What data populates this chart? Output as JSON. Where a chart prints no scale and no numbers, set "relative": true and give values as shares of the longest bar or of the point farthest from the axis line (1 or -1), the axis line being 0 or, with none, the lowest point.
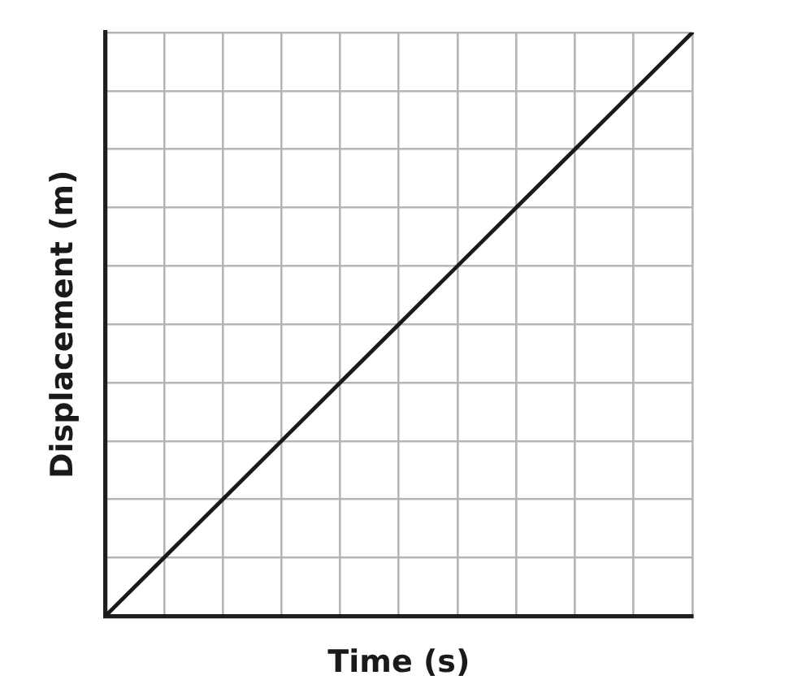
{
  "chart_data": {
    "type": "line",
    "xlabel": "Time (s)",
    "ylabel": "Displacement (m)",
    "categories": [
      null,
      null,
      null,
      null,
      null,
      null,
      null,
      null,
      null,
      null,
      null
    ],
    "series": [
      {
        "color": "#1a1a1a",
        "values": [
          0,
          0.1,
          0.2,
          0.3,
          0.4,
          0.5,
          0.6,
          0.7,
          0.8,
          0.9,
          1
        ]
      }
    ],
    "relative": true,
    "grid": true,
    "tick_labels": false,
    "marker": "none",
    "line_style": "solid"
  }
}
